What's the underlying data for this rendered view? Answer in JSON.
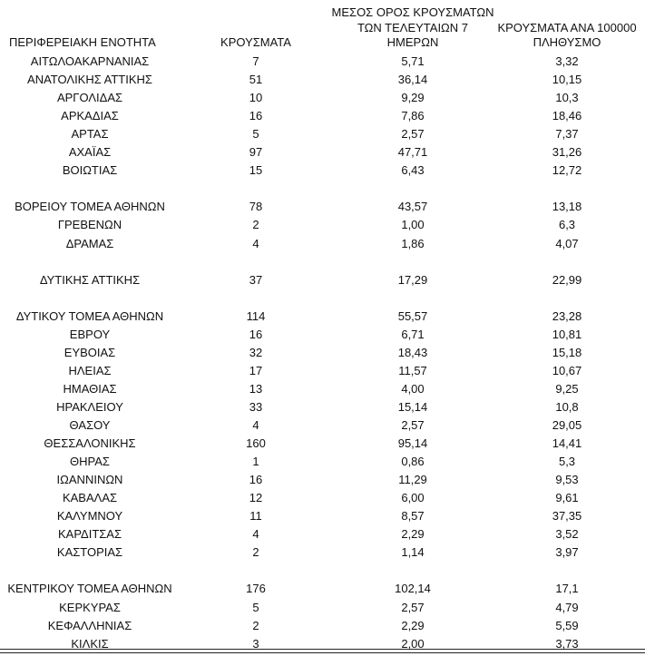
{
  "header": {
    "columns": [
      [
        "ΠΕΡΙΦΕΡΕΙΑΚΗ ΕΝΟΤΗΤΑ"
      ],
      [
        "ΚΡΟΥΣΜΑΤΑ"
      ],
      [
        "ΜΕΣΟΣ ΟΡΟΣ ΚΡΟΥΣΜΑΤΩΝ",
        "ΤΩΝ ΤΕΛΕΥΤΑΙΩΝ 7",
        "ΗΜΕΡΩΝ"
      ],
      [
        "ΚΡΟΥΣΜΑΤΑ ΑΝΑ 100000",
        "ΠΛΗΘΥΣΜΟ"
      ]
    ]
  },
  "table": {
    "groups": [
      [
        [
          "ΑΙΤΩΛΟΑΚΑΡΝΑΝΙΑΣ",
          "7",
          "5,71",
          "3,32"
        ],
        [
          "ΑΝΑΤΟΛΙΚΗΣ ΑΤΤΙΚΗΣ",
          "51",
          "36,14",
          "10,15"
        ],
        [
          "ΑΡΓΟΛΙΔΑΣ",
          "10",
          "9,29",
          "10,3"
        ],
        [
          "ΑΡΚΑΔΙΑΣ",
          "16",
          "7,86",
          "18,46"
        ],
        [
          "ΑΡΤΑΣ",
          "5",
          "2,57",
          "7,37"
        ],
        [
          "ΑΧΑΪΑΣ",
          "97",
          "47,71",
          "31,26"
        ],
        [
          "ΒΟΙΩΤΙΑΣ",
          "15",
          "6,43",
          "12,72"
        ]
      ],
      [
        [
          "ΒΟΡΕΙΟΥ ΤΟΜΕΑ ΑΘΗΝΩΝ",
          "78",
          "43,57",
          "13,18"
        ],
        [
          "ΓΡΕΒΕΝΩΝ",
          "2",
          "1,00",
          "6,3"
        ],
        [
          "ΔΡΑΜΑΣ",
          "4",
          "1,86",
          "4,07"
        ]
      ],
      [
        [
          "ΔΥΤΙΚΗΣ ΑΤΤΙΚΗΣ",
          "37",
          "17,29",
          "22,99"
        ]
      ],
      [
        [
          "ΔΥΤΙΚΟΥ ΤΟΜΕΑ ΑΘΗΝΩΝ",
          "114",
          "55,57",
          "23,28"
        ],
        [
          "ΕΒΡΟΥ",
          "16",
          "6,71",
          "10,81"
        ],
        [
          "ΕΥΒΟΙΑΣ",
          "32",
          "18,43",
          "15,18"
        ],
        [
          "ΗΛΕΙΑΣ",
          "17",
          "11,57",
          "10,67"
        ],
        [
          "ΗΜΑΘΙΑΣ",
          "13",
          "4,00",
          "9,25"
        ],
        [
          "ΗΡΑΚΛΕΙΟΥ",
          "33",
          "15,14",
          "10,8"
        ],
        [
          "ΘΑΣΟΥ",
          "4",
          "2,57",
          "29,05"
        ],
        [
          "ΘΕΣΣΑΛΟΝΙΚΗΣ",
          "160",
          "95,14",
          "14,41"
        ],
        [
          "ΘΗΡΑΣ",
          "1",
          "0,86",
          "5,3"
        ],
        [
          "ΙΩΑΝΝΙΝΩΝ",
          "16",
          "11,29",
          "9,53"
        ],
        [
          "ΚΑΒΑΛΑΣ",
          "12",
          "6,00",
          "9,61"
        ],
        [
          "ΚΑΛΥΜΝΟΥ",
          "11",
          "8,57",
          "37,35"
        ],
        [
          "ΚΑΡΔΙΤΣΑΣ",
          "4",
          "2,29",
          "3,52"
        ],
        [
          "ΚΑΣΤΟΡΙΑΣ",
          "2",
          "1,14",
          "3,97"
        ]
      ],
      [
        [
          "ΚΕΝΤΡΙΚΟΥ ΤΟΜΕΑ ΑΘΗΝΩΝ",
          "176",
          "102,14",
          "17,1"
        ],
        [
          "ΚΕΡΚΥΡΑΣ",
          "5",
          "2,57",
          "4,79"
        ],
        [
          "ΚΕΦΑΛΛΗΝΙΑΣ",
          "2",
          "2,29",
          "5,59"
        ],
        [
          "ΚΙΛΚΙΣ",
          "3",
          "2,00",
          "3,73"
        ]
      ]
    ]
  }
}
